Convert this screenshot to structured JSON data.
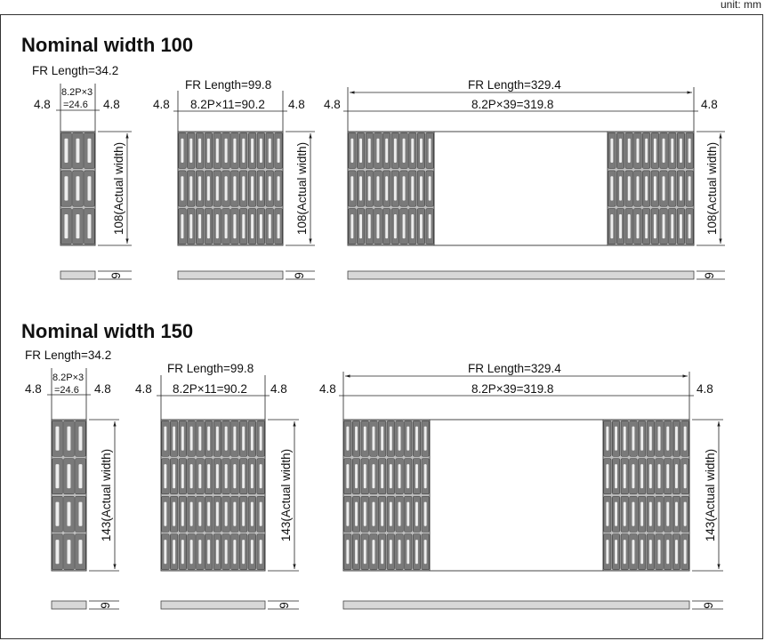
{
  "unit_label": "unit: mm",
  "sections": [
    {
      "title": "Nominal width 100",
      "actual_width_label": "108(Actual width)",
      "thickness_label": "9",
      "variants": [
        {
          "fr_length": "FR Length=34.2",
          "pitch_label_line1": "8.2P×3",
          "pitch_label_line2": "=24.6",
          "margin_left": "4.8",
          "margin_right": "4.8"
        },
        {
          "fr_length": "FR Length=99.8",
          "pitch_label": "8.2P×11=90.2",
          "margin_left": "4.8",
          "margin_right": "4.8"
        },
        {
          "fr_length": "FR Length=329.4",
          "pitch_label": "8.2P×39=319.8",
          "margin_left": "4.8",
          "margin_right": "4.8"
        }
      ]
    },
    {
      "title": "Nominal width 150",
      "actual_width_label": "143(Actual width)",
      "thickness_label": "9",
      "variants": [
        {
          "fr_length": "FR Length=34.2",
          "pitch_label_line1": "8.2P×3",
          "pitch_label_line2": "=24.6",
          "margin_left": "4.8",
          "margin_right": "4.8"
        },
        {
          "fr_length": "FR Length=99.8",
          "pitch_label": "8.2P×11=90.2",
          "margin_left": "4.8",
          "margin_right": "4.8"
        },
        {
          "fr_length": "FR Length=329.4",
          "pitch_label": "8.2P×39=319.8",
          "margin_left": "4.8",
          "margin_right": "4.8"
        }
      ]
    }
  ]
}
